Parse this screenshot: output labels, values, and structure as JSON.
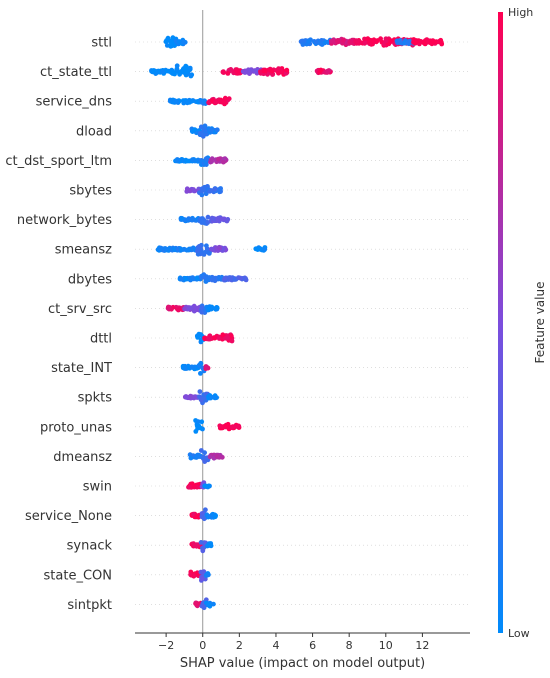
{
  "chart_data": {
    "type": "scatter",
    "subtype": "shap-beeswarm",
    "title": "",
    "xlabel": "SHAP value (impact on model output)",
    "xlim": [
      -3.7,
      14.6
    ],
    "xticks": [
      -2,
      0,
      2,
      4,
      6,
      8,
      10,
      12
    ],
    "zero_line": true,
    "colorbar": {
      "title": "Feature value",
      "high_label": "High",
      "low_label": "Low",
      "low_color": "#008bfb",
      "mid_color": "#7c4ddd",
      "high_color": "#ff0052"
    },
    "features": [
      {
        "name": "sttl",
        "segments": [
          {
            "x0": -2.1,
            "x1": -1.3,
            "v": 0.0,
            "spread": 1.0
          },
          {
            "x0": -1.5,
            "x1": -0.9,
            "v": 0.05,
            "spread": 0.5
          },
          {
            "x0": 5.3,
            "x1": 7.0,
            "v": 0.12,
            "spread": 0.45
          },
          {
            "x0": 7.0,
            "x1": 8.3,
            "v": 0.85,
            "spread": 0.5
          },
          {
            "x0": 8.3,
            "x1": 11.5,
            "v": 0.98,
            "spread": 0.55
          },
          {
            "x0": 10.6,
            "x1": 11.6,
            "v": 0.15,
            "spread": 0.4
          },
          {
            "x0": 11.5,
            "x1": 13.1,
            "v": 1.0,
            "spread": 0.45
          }
        ]
      },
      {
        "name": "ct_state_ttl",
        "segments": [
          {
            "x0": -2.9,
            "x1": -1.6,
            "v": 0.0,
            "spread": 0.35
          },
          {
            "x0": -1.6,
            "x1": -0.5,
            "v": 0.0,
            "spread": 1.0
          },
          {
            "x0": 1.0,
            "x1": 2.1,
            "v": 0.95,
            "spread": 0.4
          },
          {
            "x0": 2.1,
            "x1": 3.3,
            "v": 0.5,
            "spread": 0.45
          },
          {
            "x0": 3.1,
            "x1": 4.7,
            "v": 0.97,
            "spread": 0.55
          },
          {
            "x0": 6.2,
            "x1": 6.6,
            "v": 0.95,
            "spread": 0.3
          },
          {
            "x0": 6.6,
            "x1": 7.0,
            "v": 0.9,
            "spread": 0.3
          }
        ]
      },
      {
        "name": "service_dns",
        "segments": [
          {
            "x0": -1.8,
            "x1": -0.1,
            "v": 0.02,
            "spread": 0.3
          },
          {
            "x0": -0.1,
            "x1": 0.2,
            "v": 0.1,
            "spread": 1.0
          },
          {
            "x0": 0.2,
            "x1": 1.5,
            "v": 0.95,
            "spread": 0.5
          }
        ]
      },
      {
        "name": "dload",
        "segments": [
          {
            "x0": -0.6,
            "x1": -0.1,
            "v": 0.05,
            "spread": 0.4
          },
          {
            "x0": -0.2,
            "x1": 0.3,
            "v": 0.15,
            "spread": 1.0
          },
          {
            "x0": 0.3,
            "x1": 0.8,
            "v": 0.1,
            "spread": 0.4
          }
        ]
      },
      {
        "name": "ct_dst_sport_ltm",
        "segments": [
          {
            "x0": -1.5,
            "x1": -0.2,
            "v": 0.02,
            "spread": 0.2
          },
          {
            "x0": -0.2,
            "x1": 0.3,
            "v": 0.1,
            "spread": 1.0
          },
          {
            "x0": 0.4,
            "x1": 1.3,
            "v": 0.7,
            "spread": 0.4
          }
        ]
      },
      {
        "name": "sbytes",
        "segments": [
          {
            "x0": -0.9,
            "x1": -0.1,
            "v": 0.5,
            "spread": 0.3
          },
          {
            "x0": -0.2,
            "x1": 0.3,
            "v": 0.2,
            "spread": 1.0
          },
          {
            "x0": 0.3,
            "x1": 1.0,
            "v": 0.2,
            "spread": 0.35
          }
        ]
      },
      {
        "name": "network_bytes",
        "segments": [
          {
            "x0": -1.2,
            "x1": -0.2,
            "v": 0.1,
            "spread": 0.25
          },
          {
            "x0": -0.2,
            "x1": 0.3,
            "v": 0.2,
            "spread": 1.0
          },
          {
            "x0": 0.3,
            "x1": 1.4,
            "v": 0.4,
            "spread": 0.35
          }
        ]
      },
      {
        "name": "smeansz",
        "segments": [
          {
            "x0": -2.5,
            "x1": -0.3,
            "v": 0.08,
            "spread": 0.25
          },
          {
            "x0": -0.3,
            "x1": 0.4,
            "v": 0.2,
            "spread": 1.0
          },
          {
            "x0": 0.4,
            "x1": 1.3,
            "v": 0.5,
            "spread": 0.35
          },
          {
            "x0": 2.9,
            "x1": 3.4,
            "v": 0.0,
            "spread": 0.3
          }
        ]
      },
      {
        "name": "dbytes",
        "segments": [
          {
            "x0": -1.3,
            "x1": -0.1,
            "v": 0.05,
            "spread": 0.2
          },
          {
            "x0": -0.1,
            "x1": 0.2,
            "v": 0.15,
            "spread": 1.0
          },
          {
            "x0": 0.2,
            "x1": 1.1,
            "v": 0.15,
            "spread": 0.35
          },
          {
            "x0": 1.1,
            "x1": 2.4,
            "v": 0.3,
            "spread": 0.35
          }
        ]
      },
      {
        "name": "ct_srv_src",
        "segments": [
          {
            "x0": -1.9,
            "x1": -1.0,
            "v": 0.9,
            "spread": 0.3
          },
          {
            "x0": -1.0,
            "x1": -0.1,
            "v": 0.5,
            "spread": 0.5
          },
          {
            "x0": -0.1,
            "x1": 0.2,
            "v": 0.2,
            "spread": 1.0
          },
          {
            "x0": 0.2,
            "x1": 0.9,
            "v": 0.05,
            "spread": 0.3
          }
        ]
      },
      {
        "name": "dttl",
        "segments": [
          {
            "x0": -0.3,
            "x1": 0.1,
            "v": 0.0,
            "spread": 1.0
          },
          {
            "x0": 0.1,
            "x1": 1.6,
            "v": 0.97,
            "spread": 0.6
          }
        ]
      },
      {
        "name": "state_INT",
        "segments": [
          {
            "x0": -1.1,
            "x1": -0.2,
            "v": 0.02,
            "spread": 0.3
          },
          {
            "x0": -0.2,
            "x1": 0.1,
            "v": 0.1,
            "spread": 1.0
          },
          {
            "x0": 0.1,
            "x1": 0.3,
            "v": 0.9,
            "spread": 0.3
          }
        ]
      },
      {
        "name": "spkts",
        "segments": [
          {
            "x0": -1.0,
            "x1": -0.2,
            "v": 0.5,
            "spread": 0.25
          },
          {
            "x0": -0.2,
            "x1": 0.3,
            "v": 0.25,
            "spread": 1.0
          },
          {
            "x0": 0.3,
            "x1": 0.8,
            "v": 0.05,
            "spread": 0.3
          }
        ]
      },
      {
        "name": "proto_unas",
        "segments": [
          {
            "x0": -0.4,
            "x1": 0.0,
            "v": 0.0,
            "spread": 1.0
          },
          {
            "x0": 0.9,
            "x1": 2.1,
            "v": 1.0,
            "spread": 0.4
          }
        ]
      },
      {
        "name": "dmeansz",
        "segments": [
          {
            "x0": -0.7,
            "x1": -0.1,
            "v": 0.1,
            "spread": 0.35
          },
          {
            "x0": -0.1,
            "x1": 0.3,
            "v": 0.25,
            "spread": 1.0
          },
          {
            "x0": 0.3,
            "x1": 1.1,
            "v": 0.7,
            "spread": 0.35
          }
        ]
      },
      {
        "name": "swin",
        "segments": [
          {
            "x0": -0.8,
            "x1": -0.1,
            "v": 0.97,
            "spread": 0.5
          },
          {
            "x0": -0.1,
            "x1": 0.1,
            "v": 0.5,
            "spread": 1.0
          },
          {
            "x0": 0.1,
            "x1": 0.4,
            "v": 0.02,
            "spread": 0.35
          }
        ]
      },
      {
        "name": "service_None",
        "segments": [
          {
            "x0": -0.6,
            "x1": -0.1,
            "v": 0.97,
            "spread": 0.45
          },
          {
            "x0": -0.1,
            "x1": 0.2,
            "v": 0.3,
            "spread": 1.0
          },
          {
            "x0": 0.2,
            "x1": 0.8,
            "v": 0.02,
            "spread": 0.35
          }
        ]
      },
      {
        "name": "synack",
        "segments": [
          {
            "x0": -0.6,
            "x1": -0.1,
            "v": 0.95,
            "spread": 0.4
          },
          {
            "x0": -0.1,
            "x1": 0.2,
            "v": 0.3,
            "spread": 1.0
          },
          {
            "x0": 0.2,
            "x1": 0.5,
            "v": 0.05,
            "spread": 0.35
          }
        ]
      },
      {
        "name": "state_CON",
        "segments": [
          {
            "x0": -0.7,
            "x1": -0.1,
            "v": 0.97,
            "spread": 0.45
          },
          {
            "x0": -0.1,
            "x1": 0.2,
            "v": 0.4,
            "spread": 1.0
          },
          {
            "x0": 0.2,
            "x1": 0.4,
            "v": 0.02,
            "spread": 0.3
          }
        ]
      },
      {
        "name": "sintpkt",
        "segments": [
          {
            "x0": -0.4,
            "x1": -0.1,
            "v": 0.9,
            "spread": 0.35
          },
          {
            "x0": -0.1,
            "x1": 0.2,
            "v": 0.3,
            "spread": 1.0
          },
          {
            "x0": 0.2,
            "x1": 0.6,
            "v": 0.05,
            "spread": 0.35
          }
        ]
      }
    ]
  }
}
